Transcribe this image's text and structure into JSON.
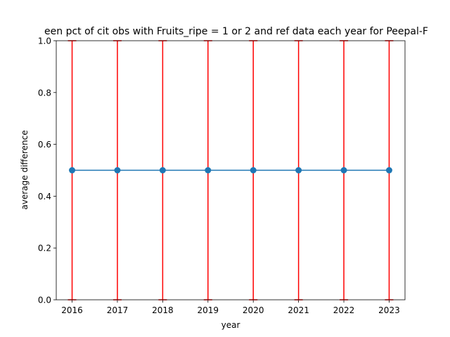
{
  "chart_data": {
    "type": "line",
    "title": "een pct of cit obs with Fruits_ripe = 1 or 2 and ref data each year for Peepal-F",
    "xlabel": "year",
    "ylabel": "average difference",
    "x": [
      2016,
      2017,
      2018,
      2019,
      2020,
      2021,
      2022,
      2023
    ],
    "x_tick_labels": [
      "2016",
      "2017",
      "2018",
      "2019",
      "2020",
      "2021",
      "2022",
      "2023"
    ],
    "y_ticks": [
      0.0,
      0.2,
      0.4,
      0.6,
      0.8,
      1.0
    ],
    "y_tick_labels": [
      "0.0",
      "0.2",
      "0.4",
      "0.6",
      "0.8",
      "1.0"
    ],
    "xlim": [
      2015.65,
      2023.35
    ],
    "ylim": [
      0.0,
      1.0
    ],
    "series": [
      {
        "values": [
          0.5,
          0.5,
          0.5,
          0.5,
          0.5,
          0.5,
          0.5,
          0.5
        ],
        "error_low": [
          0.0,
          0.0,
          0.0,
          0.0,
          0.0,
          0.0,
          0.0,
          0.0
        ],
        "error_high": [
          1.0,
          1.0,
          1.0,
          1.0,
          1.0,
          1.0,
          1.0,
          1.0
        ]
      }
    ],
    "colors": {
      "line": "#1f77b4",
      "marker": "#1f77b4",
      "errorbar": "#ff0000"
    },
    "grid": false,
    "legend": "none"
  }
}
